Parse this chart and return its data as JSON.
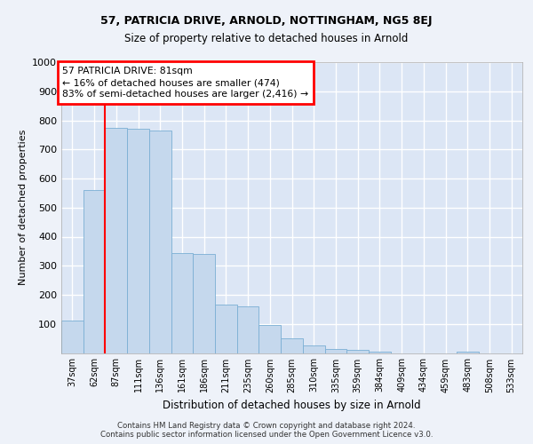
{
  "title1": "57, PATRICIA DRIVE, ARNOLD, NOTTINGHAM, NG5 8EJ",
  "title2": "Size of property relative to detached houses in Arnold",
  "xlabel": "Distribution of detached houses by size in Arnold",
  "ylabel": "Number of detached properties",
  "categories": [
    "37sqm",
    "62sqm",
    "87sqm",
    "111sqm",
    "136sqm",
    "161sqm",
    "186sqm",
    "211sqm",
    "235sqm",
    "260sqm",
    "285sqm",
    "310sqm",
    "335sqm",
    "359sqm",
    "384sqm",
    "409sqm",
    "434sqm",
    "459sqm",
    "483sqm",
    "508sqm",
    "533sqm"
  ],
  "values": [
    110,
    560,
    775,
    770,
    765,
    345,
    340,
    165,
    160,
    95,
    50,
    25,
    15,
    10,
    5,
    0,
    0,
    0,
    5,
    0,
    0
  ],
  "bar_color": "#c5d8ed",
  "bar_edge_color": "#7bafd4",
  "red_line_x": 1.5,
  "annotation_box_text": "57 PATRICIA DRIVE: 81sqm\n← 16% of detached houses are smaller (474)\n83% of semi-detached houses are larger (2,416) →",
  "footer": "Contains HM Land Registry data © Crown copyright and database right 2024.\nContains public sector information licensed under the Open Government Licence v3.0.",
  "bg_color": "#eef2f9",
  "plot_bg_color": "#dce6f5",
  "grid_color": "#ffffff",
  "ylim": [
    0,
    1000
  ],
  "yticks": [
    0,
    100,
    200,
    300,
    400,
    500,
    600,
    700,
    800,
    900,
    1000
  ]
}
